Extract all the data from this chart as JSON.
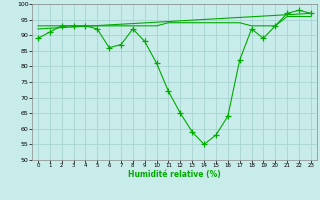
{
  "xlabel": "Humidité relative (%)",
  "background_color": "#c8ecea",
  "grid_color": "#a8d4d2",
  "line_color": "#00aa00",
  "xlim": [
    -0.5,
    23.5
  ],
  "ylim": [
    50,
    100
  ],
  "yticks": [
    50,
    55,
    60,
    65,
    70,
    75,
    80,
    85,
    90,
    95,
    100
  ],
  "xticks": [
    0,
    1,
    2,
    3,
    4,
    5,
    6,
    7,
    8,
    9,
    10,
    11,
    12,
    13,
    14,
    15,
    16,
    17,
    18,
    19,
    20,
    21,
    22,
    23
  ],
  "line1_x": [
    0,
    1,
    2,
    3,
    4,
    5,
    6,
    7,
    8,
    9,
    10,
    11,
    12,
    13,
    14,
    15,
    16,
    17,
    18,
    19,
    20,
    21,
    22,
    23
  ],
  "line1_y": [
    89,
    91,
    93,
    93,
    93,
    92,
    86,
    87,
    92,
    88,
    81,
    72,
    65,
    59,
    55,
    58,
    64,
    82,
    92,
    89,
    93,
    97,
    98,
    97
  ],
  "line2_x": [
    0,
    1,
    2,
    3,
    4,
    5,
    6,
    7,
    8,
    9,
    10,
    11,
    12,
    13,
    14,
    15,
    16,
    17,
    18,
    19,
    20,
    21,
    22,
    23
  ],
  "line2_y": [
    93,
    93,
    93,
    93,
    93,
    93,
    93,
    93,
    93,
    93,
    93,
    94,
    94,
    94,
    94,
    94,
    94,
    94,
    93,
    93,
    93,
    96,
    96,
    96
  ],
  "line3_x": [
    0,
    23
  ],
  "line3_y": [
    92,
    97
  ]
}
